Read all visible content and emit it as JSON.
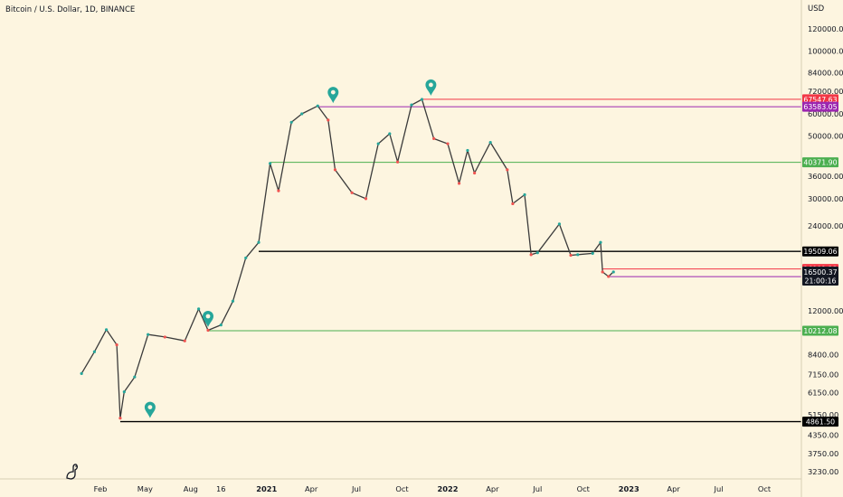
{
  "header": {
    "title": "Bitcoin / U.S. Dollar, 1D, BINANCE"
  },
  "colors": {
    "background": "#fdf5e0",
    "candle_up": "#26a69a",
    "candle_down": "#ef5350",
    "black_level": "#000000",
    "green_level": "#4caf50",
    "red_level": "#f23645",
    "purple_level": "#9c27b0",
    "marker": "#26a69a"
  },
  "chart_data": {
    "type": "line",
    "title": "Bitcoin / U.S. Dollar, 1D, BINANCE",
    "y_scale": "log",
    "y_unit": "USD",
    "ylim": [
      3000,
      160000
    ],
    "x_ticks": [
      "Feb",
      "May",
      "Aug",
      "16",
      "2021",
      "Apr",
      "Jul",
      "Oct",
      "2022",
      "Apr",
      "Jul",
      "Oct",
      "2023",
      "Apr",
      "Jul",
      "Oct"
    ],
    "x_tick_dates": [
      "2020-02-01",
      "2020-05-01",
      "2020-08-01",
      "2020-10-01",
      "2021-01-01",
      "2021-04-01",
      "2021-07-01",
      "2021-10-01",
      "2022-01-01",
      "2022-04-01",
      "2022-07-01",
      "2022-10-01",
      "2023-01-01",
      "2023-04-01",
      "2023-07-01",
      "2023-10-01"
    ],
    "y_ticks": [
      "3230.00",
      "3750.00",
      "4350.00",
      "5150.00",
      "6150.00",
      "7150.00",
      "8400.00",
      "12000.00",
      "24000.00",
      "30000.00",
      "36000.00",
      "50000.00",
      "60000.00",
      "72000.00",
      "84000.00",
      "100000.00",
      "120000.00"
    ],
    "y_tick_values": [
      3230,
      3750,
      4350,
      5150,
      6150,
      7150,
      8400,
      12000,
      24000,
      30000,
      36000,
      50000,
      60000,
      72000,
      84000,
      100000,
      120000
    ],
    "series": [
      {
        "dates": [
          "2019-12-25",
          "2020-01-20",
          "2020-02-13",
          "2020-03-05",
          "2020-03-12",
          "2020-03-20",
          "2020-04-10",
          "2020-05-07",
          "2020-06-10",
          "2020-07-20",
          "2020-08-17",
          "2020-09-05",
          "2020-10-01",
          "2020-10-25",
          "2020-11-20",
          "2020-12-16",
          "2021-01-08",
          "2021-01-25",
          "2021-02-20",
          "2021-03-13",
          "2021-04-14",
          "2021-05-05",
          "2021-05-19",
          "2021-06-22",
          "2021-07-20",
          "2021-08-14",
          "2021-09-06",
          "2021-09-22",
          "2021-10-20",
          "2021-11-10",
          "2021-12-04",
          "2022-01-01",
          "2022-01-24",
          "2022-02-10",
          "2022-02-24",
          "2022-03-28",
          "2022-05-01",
          "2022-05-12",
          "2022-06-05",
          "2022-06-18",
          "2022-07-01",
          "2022-08-14",
          "2022-09-06",
          "2022-09-20",
          "2022-10-20",
          "2022-11-05",
          "2022-11-09",
          "2022-11-21",
          "2022-12-01"
        ],
        "values": [
          7200,
          8600,
          10300,
          9100,
          5000,
          6200,
          7000,
          9900,
          9700,
          9400,
          12200,
          10250,
          10700,
          13000,
          18500,
          21000,
          40000,
          32000,
          56000,
          60000,
          64000,
          57000,
          38000,
          31500,
          30000,
          47000,
          51000,
          40500,
          64500,
          67500,
          49000,
          47000,
          34000,
          44500,
          37000,
          47500,
          38000,
          28800,
          31000,
          19000,
          19300,
          24400,
          18900,
          19000,
          19200,
          21000,
          16500,
          15900,
          16500
        ]
      }
    ],
    "horizontal_levels": [
      {
        "price": 67547.63,
        "label": "67547.63",
        "color": "red",
        "start": "2021-11-10"
      },
      {
        "price": 63583.05,
        "label": "63583.05",
        "color": "purple",
        "start": "2021-04-14"
      },
      {
        "price": 40371.9,
        "label": "40371.90",
        "color": "green",
        "start": "2021-01-08"
      },
      {
        "price": 19509.06,
        "label": "19509.06",
        "color": "black",
        "start": "2020-12-16"
      },
      {
        "price": 16901.23,
        "label": "16901.23",
        "color": "red",
        "start": "2022-11-09"
      },
      {
        "price": 15881.97,
        "label": "15881.97",
        "color": "purple",
        "start": "2022-11-21"
      },
      {
        "price": 10212.08,
        "label": "10212.08",
        "color": "green",
        "start": "2020-09-05"
      },
      {
        "price": 4861.5,
        "label": "4861.50",
        "color": "black",
        "start": "2020-03-12"
      }
    ],
    "current_price": {
      "price": 16500.37,
      "label": "16500.37",
      "countdown": "21:00:16"
    },
    "markers": [
      {
        "date": "2020-05-11",
        "price": 4861.5
      },
      {
        "date": "2020-09-05",
        "price": 10212.08
      },
      {
        "date": "2021-05-15",
        "price": 63583.05
      },
      {
        "date": "2021-11-28",
        "price": 67547.63
      }
    ]
  }
}
